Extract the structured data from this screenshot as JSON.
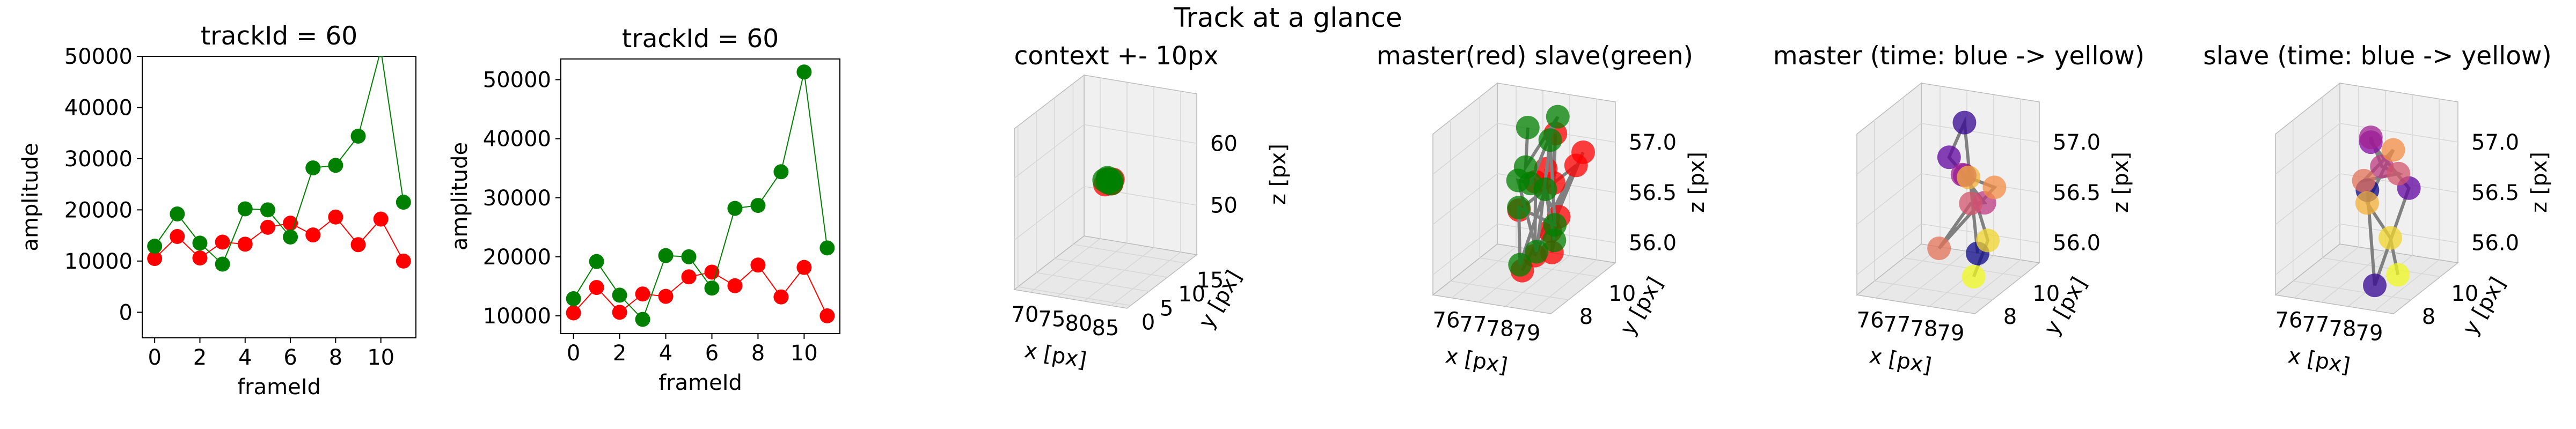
{
  "figure": {
    "suptitle": "Track at a glance"
  },
  "colors": {
    "master": "#ff0000",
    "slave": "#008000",
    "connector": "#808080",
    "pane": "#f2f2f2",
    "grid": "#d6d6d6"
  },
  "chart_data": [
    {
      "type": "line",
      "title": "trackId = 60",
      "xlabel": "frameId",
      "ylabel": "amplitude",
      "xlim": [
        -0.55,
        11.55
      ],
      "ylim": [
        -5000,
        50000
      ],
      "xticks": [
        "0",
        "2",
        "4",
        "6",
        "8",
        "10"
      ],
      "yticks": [
        "0",
        "10000",
        "20000",
        "30000",
        "40000",
        "50000"
      ],
      "x": [
        0,
        1,
        2,
        3,
        4,
        5,
        6,
        7,
        8,
        9,
        10,
        11
      ],
      "series": [
        {
          "color": "#ff0000",
          "values": [
            10500,
            14800,
            10600,
            13700,
            13300,
            16600,
            17400,
            15100,
            18600,
            13200,
            18200,
            10000
          ]
        },
        {
          "color": "#008000",
          "values": [
            12900,
            19200,
            13500,
            9400,
            20200,
            20000,
            14700,
            28200,
            28700,
            34400,
            51300,
            21500
          ]
        }
      ]
    },
    {
      "type": "line",
      "title": "trackId = 60",
      "xlabel": "frameId",
      "ylabel": "amplitude",
      "xlim": [
        -0.55,
        11.55
      ],
      "ylim": [
        7000,
        53500
      ],
      "xticks": [
        "0",
        "2",
        "4",
        "6",
        "8",
        "10"
      ],
      "yticks": [
        "10000",
        "20000",
        "30000",
        "40000",
        "50000"
      ],
      "x": [
        0,
        1,
        2,
        3,
        4,
        5,
        6,
        7,
        8,
        9,
        10,
        11
      ],
      "series": [
        {
          "color": "#ff0000",
          "values": [
            10500,
            14800,
            10600,
            13700,
            13300,
            16600,
            17400,
            15100,
            18600,
            13200,
            18200,
            10000
          ]
        },
        {
          "color": "#008000",
          "values": [
            12900,
            19200,
            13500,
            9400,
            20200,
            20000,
            14700,
            28200,
            28700,
            34400,
            51300,
            21500
          ]
        }
      ]
    },
    {
      "type": "scatter",
      "projection": "3d",
      "title": "context +- 10px",
      "xlabel": "x [px]",
      "ylabel": "y [px]",
      "zlabel": "z [px]",
      "xlim": [
        67,
        88
      ],
      "ylim": [
        -1,
        18
      ],
      "zlim": [
        42,
        68
      ],
      "xticks": [
        "70",
        "75",
        "80",
        "85"
      ],
      "yticks": [
        "0",
        "5",
        "10",
        "15"
      ],
      "zticks": [
        "50",
        "60"
      ],
      "series": [
        {
          "color": "#ff0000",
          "x": [
            77.6,
            78.0,
            78.4,
            77.9,
            78.3,
            78.6
          ],
          "y": [
            8.2,
            8.8,
            9.2,
            8.5,
            9.0,
            8.4
          ],
          "z": [
            56.3,
            56.6,
            56.8,
            57.0,
            56.2,
            56.5
          ]
        },
        {
          "color": "#008000",
          "x": [
            77.3,
            77.6,
            77.9,
            78.2,
            77.5,
            77.8,
            78.1,
            78.4
          ],
          "y": [
            8.4,
            8.9,
            9.3,
            8.6,
            9.1,
            8.7,
            9.4,
            8.8
          ],
          "z": [
            56.9,
            57.1,
            56.4,
            56.7,
            56.2,
            57.0,
            56.6,
            56.3
          ]
        }
      ]
    },
    {
      "type": "scatter",
      "projection": "3d",
      "title": "master(red) slave(green)",
      "xlabel": "x [px]",
      "ylabel": "y [px]",
      "zlabel": "z [px]",
      "xlim": [
        75.3,
        79.7
      ],
      "ylim": [
        6.8,
        11.2
      ],
      "zlim": [
        55.8,
        57.4
      ],
      "xticks": [
        "76",
        "77",
        "78",
        "79"
      ],
      "yticks": [
        "8",
        "10"
      ],
      "zticks": [
        "56.0",
        "56.5",
        "57.0"
      ],
      "series": [
        {
          "color": "#ff0000",
          "x": [
            78.2,
            78.8,
            79.1,
            78.5,
            77.6,
            78.9,
            79.3,
            77.9,
            78.6,
            77.8,
            79.0,
            78.3
          ],
          "y": [
            9.2,
            8.4,
            10.1,
            7.9,
            9.6,
            8.8,
            7.6,
            10.4,
            9.0,
            8.1,
            9.8,
            7.4
          ],
          "z": [
            56.9,
            56.4,
            57.0,
            56.2,
            56.7,
            56.5,
            56.3,
            57.1,
            56.8,
            56.6,
            56.9,
            56.1
          ]
        },
        {
          "color": "#008000",
          "x": [
            77.2,
            77.5,
            78.1,
            77.9,
            77.0,
            78.4,
            77.6,
            78.7,
            77.3,
            78.0,
            77.8,
            78.9
          ],
          "y": [
            9.8,
            9.1,
            10.2,
            8.7,
            9.5,
            8.2,
            10.6,
            8.9,
            9.0,
            7.8,
            9.9,
            8.5
          ],
          "z": [
            57.2,
            56.9,
            57.3,
            56.8,
            56.7,
            56.2,
            57.0,
            56.4,
            56.5,
            56.1,
            56.6,
            56.3
          ]
        }
      ]
    },
    {
      "type": "scatter",
      "projection": "3d",
      "title": "master (time: blue -> yellow)",
      "xlabel": "x [px]",
      "ylabel": "y [px]",
      "zlabel": "z [px]",
      "xlim": [
        75.3,
        79.7
      ],
      "ylim": [
        6.8,
        11.2
      ],
      "zlim": [
        55.8,
        57.4
      ],
      "xticks": [
        "76",
        "77",
        "78",
        "79"
      ],
      "yticks": [
        "8",
        "10"
      ],
      "zticks": [
        "56.0",
        "56.5",
        "57.0"
      ],
      "series": [
        {
          "colormap": "plasma",
          "x": [
            78.6,
            77.4,
            77.1,
            77.9,
            78.2,
            78.8,
            78.4,
            77.6,
            78.9,
            78.1,
            79.2,
            79.0
          ],
          "y": [
            9.0,
            10.3,
            9.8,
            9.4,
            8.7,
            9.1,
            8.9,
            8.2,
            9.6,
            9.3,
            8.6,
            8.0
          ],
          "z": [
            56.1,
            57.2,
            56.9,
            56.8,
            56.9,
            56.6,
            56.6,
            56.2,
            56.7,
            56.8,
            56.3,
            56.0
          ]
        }
      ]
    },
    {
      "type": "scatter",
      "projection": "3d",
      "title": "slave (time: blue -> yellow)",
      "xlabel": "x [px]",
      "ylabel": "y [px]",
      "zlabel": "z [px]",
      "xlim": [
        75.3,
        79.7
      ],
      "ylim": [
        6.8,
        11.2
      ],
      "zlim": [
        55.8,
        57.4
      ],
      "xticks": [
        "76",
        "77",
        "78",
        "79"
      ],
      "yticks": [
        "8",
        "10"
      ],
      "zticks": [
        "56.0",
        "56.5",
        "57.0"
      ],
      "series": [
        {
          "colormap": "plasma",
          "x": [
            77.2,
            78.4,
            78.8,
            77.0,
            77.6,
            77.9,
            78.3,
            77.5,
            78.0,
            77.3,
            78.6,
            79.1
          ],
          "y": [
            9.6,
            7.9,
            9.5,
            10.2,
            9.1,
            9.3,
            9.7,
            8.8,
            9.9,
            9.4,
            8.6,
            8.2
          ],
          "z": [
            56.6,
            55.9,
            56.7,
            57.0,
            57.2,
            56.9,
            56.8,
            56.8,
            57.0,
            56.5,
            56.3,
            56.0
          ]
        }
      ]
    }
  ]
}
